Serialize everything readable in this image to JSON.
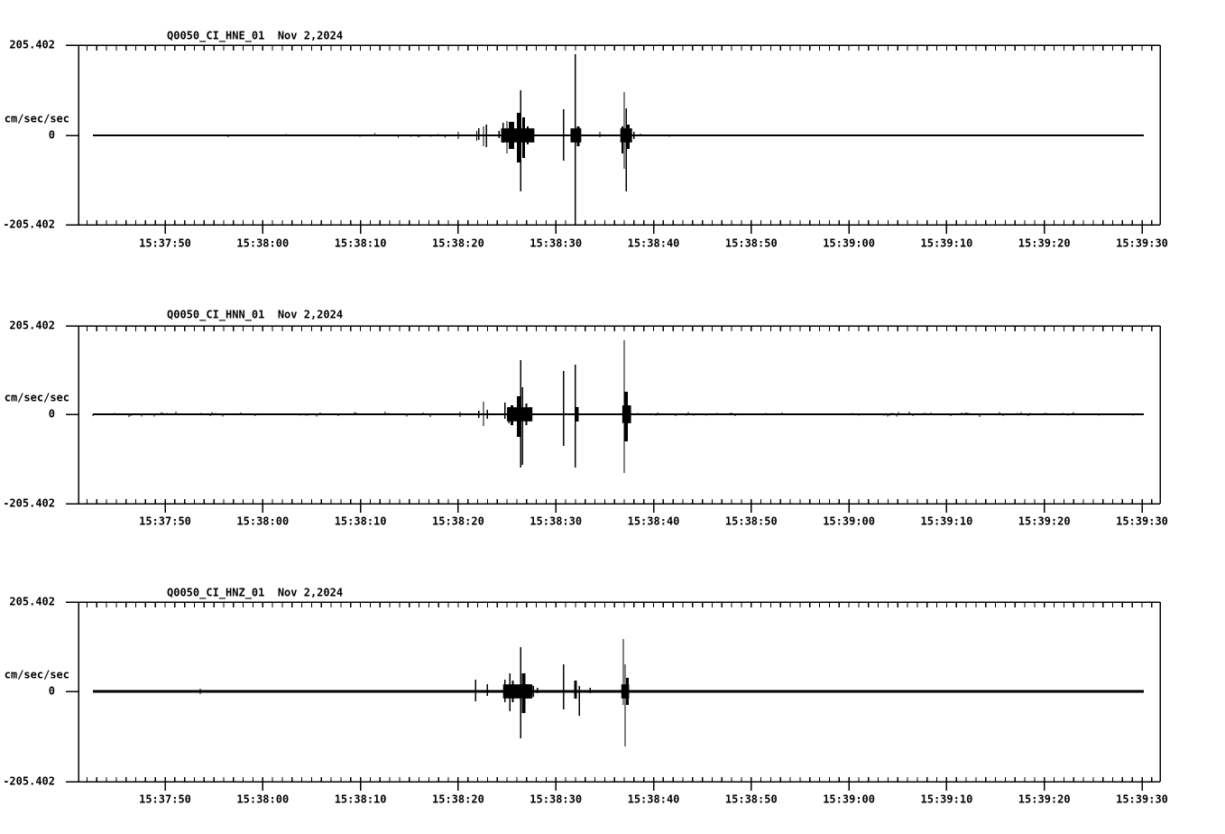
{
  "chart_data": {
    "type": "line",
    "description": "Three-panel strong-motion seismogram display, station Q0050 network CI, channels HNE/HNN/HNZ, Nov 2 2024",
    "time_axis": {
      "tick_labels": [
        "15:37:50",
        "15:38:00",
        "15:38:10",
        "15:38:20",
        "15:38:30",
        "15:38:40",
        "15:38:50",
        "15:39:00",
        "15:39:10",
        "15:39:20",
        "15:39:30"
      ],
      "minor_tick_interval_sec": 1,
      "major_tick_interval_sec": 10,
      "axis_start_offset_sec": -8.9,
      "axis_end_offset_sec": 101.8,
      "reference_label": "15:37:50"
    },
    "y_axis": {
      "label": "cm/sec/sec",
      "ylim": [
        -205.402,
        205.402
      ],
      "tick_labels": [
        "205.402",
        "0",
        "-205.402"
      ]
    },
    "trace_start_sec": -7.4,
    "trace_end_sec": 100.2,
    "grid": false,
    "legend": false,
    "panels": [
      {
        "title": "Q0050_CI_HNE_01  Nov 2,2024",
        "station_channel": "Q0050_CI_HNE_01",
        "date": "Nov 2,2024",
        "baseline_value": 0,
        "baseline_thickness_px": 1.6,
        "spikes": [
          [
            30.0,
            8,
            8
          ],
          [
            31.9,
            10,
            12
          ],
          [
            32.1,
            16,
            10
          ],
          [
            32.6,
            21,
            25
          ],
          [
            32.9,
            25,
            27
          ],
          [
            34.2,
            10,
            6
          ],
          [
            34.6,
            29,
            16
          ],
          [
            35.0,
            33,
            41
          ],
          [
            35.3,
            31,
            31,
            3
          ],
          [
            35.6,
            31,
            31,
            3
          ],
          [
            36.2,
            51,
            62,
            4
          ],
          [
            36.4,
            103,
            127
          ],
          [
            36.7,
            41,
            51,
            3
          ],
          [
            37.1,
            21,
            21,
            2
          ],
          [
            37.5,
            12,
            12
          ],
          [
            40.8,
            60,
            58
          ],
          [
            41.6,
            8,
            8
          ],
          [
            42.0,
            185,
            203
          ],
          [
            42.3,
            21,
            25,
            3
          ],
          [
            44.5,
            8,
            4
          ],
          [
            46.8,
            21,
            41,
            2
          ],
          [
            47.0,
            99,
            76
          ],
          [
            47.2,
            62,
            127
          ],
          [
            47.4,
            25,
            31,
            3
          ],
          [
            48.0,
            8,
            8
          ]
        ],
        "bands": [
          [
            34.4,
            37.8,
            16
          ],
          [
            41.5,
            42.6,
            16
          ],
          [
            46.6,
            47.8,
            16
          ]
        ],
        "noise": [
          [
            -7.4,
            20,
            4,
            0.05
          ],
          [
            20,
            29.8,
            6,
            0.14
          ],
          [
            48.3,
            52,
            6,
            0.2
          ],
          [
            52,
            100,
            3,
            0.02
          ]
        ]
      },
      {
        "title": "Q0050_CI_HNN_01  Nov 2,2024",
        "station_channel": "Q0050_CI_HNN_01",
        "date": "Nov 2,2024",
        "baseline_value": 0,
        "baseline_thickness_px": 2.0,
        "spikes": [
          [
            30.2,
            6,
            6
          ],
          [
            32.1,
            8,
            8
          ],
          [
            32.6,
            29,
            27
          ],
          [
            33.0,
            10,
            10
          ],
          [
            34.8,
            27,
            10
          ],
          [
            35.2,
            16,
            21
          ],
          [
            35.5,
            21,
            25,
            3
          ],
          [
            36.2,
            41,
            51,
            4
          ],
          [
            36.4,
            123,
            121
          ],
          [
            36.6,
            62,
            115
          ],
          [
            37.0,
            25,
            25,
            2
          ],
          [
            37.4,
            16,
            16
          ],
          [
            40.8,
            99,
            72
          ],
          [
            42.0,
            113,
            121
          ],
          [
            42.2,
            16,
            16,
            3
          ],
          [
            47.0,
            168,
            133
          ],
          [
            47.2,
            51,
            62,
            4
          ],
          [
            47.5,
            21,
            21,
            2
          ]
        ],
        "bands": [
          [
            35.0,
            37.6,
            16
          ],
          [
            46.8,
            47.7,
            20
          ]
        ],
        "noise": [
          [
            -7.4,
            29.8,
            6,
            0.2
          ],
          [
            48,
            58,
            5,
            0.15
          ],
          [
            58,
            71,
            4,
            0.1
          ],
          [
            71,
            95,
            6,
            0.25
          ],
          [
            95,
            100,
            4,
            0.1
          ]
        ]
      },
      {
        "title": "Q0050_CI_HNZ_01  Nov 2,2024",
        "station_channel": "Q0050_CI_HNZ_01",
        "date": "Nov 2,2024",
        "baseline_value": 0,
        "baseline_thickness_px": 2.6,
        "spikes": [
          [
            3.6,
            6,
            6
          ],
          [
            31.8,
            27,
            23
          ],
          [
            33.0,
            16,
            10
          ],
          [
            34.8,
            27,
            25
          ],
          [
            35.3,
            41,
            45
          ],
          [
            35.6,
            25,
            25,
            2
          ],
          [
            36.4,
            101,
            107
          ],
          [
            36.7,
            41,
            49,
            4
          ],
          [
            37.1,
            16,
            16,
            3
          ],
          [
            37.7,
            12,
            12
          ],
          [
            38.1,
            8,
            4
          ],
          [
            40.8,
            62,
            41
          ],
          [
            42.0,
            25,
            16,
            3
          ],
          [
            42.4,
            12,
            55
          ],
          [
            43.5,
            8,
            4
          ],
          [
            46.9,
            119,
            31
          ],
          [
            47.1,
            62,
            125
          ],
          [
            47.3,
            31,
            31,
            3
          ]
        ],
        "bands": [
          [
            34.6,
            37.6,
            16
          ],
          [
            46.7,
            47.5,
            16
          ]
        ],
        "noise": [
          [
            -7.4,
            30,
            3,
            0.02
          ],
          [
            48,
            100,
            3,
            0.02
          ]
        ]
      }
    ],
    "colors": {
      "trace": "#000000",
      "background": "#ffffff"
    }
  }
}
